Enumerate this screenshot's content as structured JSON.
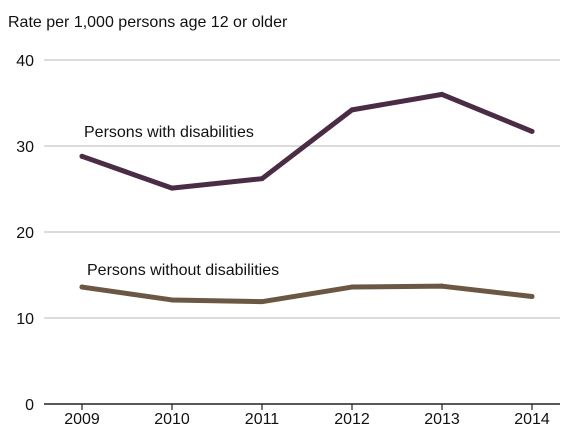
{
  "chart_data": {
    "type": "line",
    "ylabel": "Rate per 1,000 persons age 12 or older",
    "x": [
      "2009",
      "2010",
      "2011",
      "2012",
      "2013",
      "2014"
    ],
    "yticks": [
      "0",
      "10",
      "20",
      "30",
      "40"
    ],
    "ylim": [
      0,
      40
    ],
    "grid": true,
    "series": [
      {
        "name": "Persons with disabilities",
        "values": [
          28.8,
          25.1,
          26.2,
          34.2,
          36.0,
          31.7
        ],
        "color": "#4a2d44"
      },
      {
        "name": "Persons without disabilities",
        "values": [
          13.6,
          12.1,
          11.9,
          13.6,
          13.7,
          12.5
        ],
        "color": "#6b5844"
      }
    ]
  }
}
